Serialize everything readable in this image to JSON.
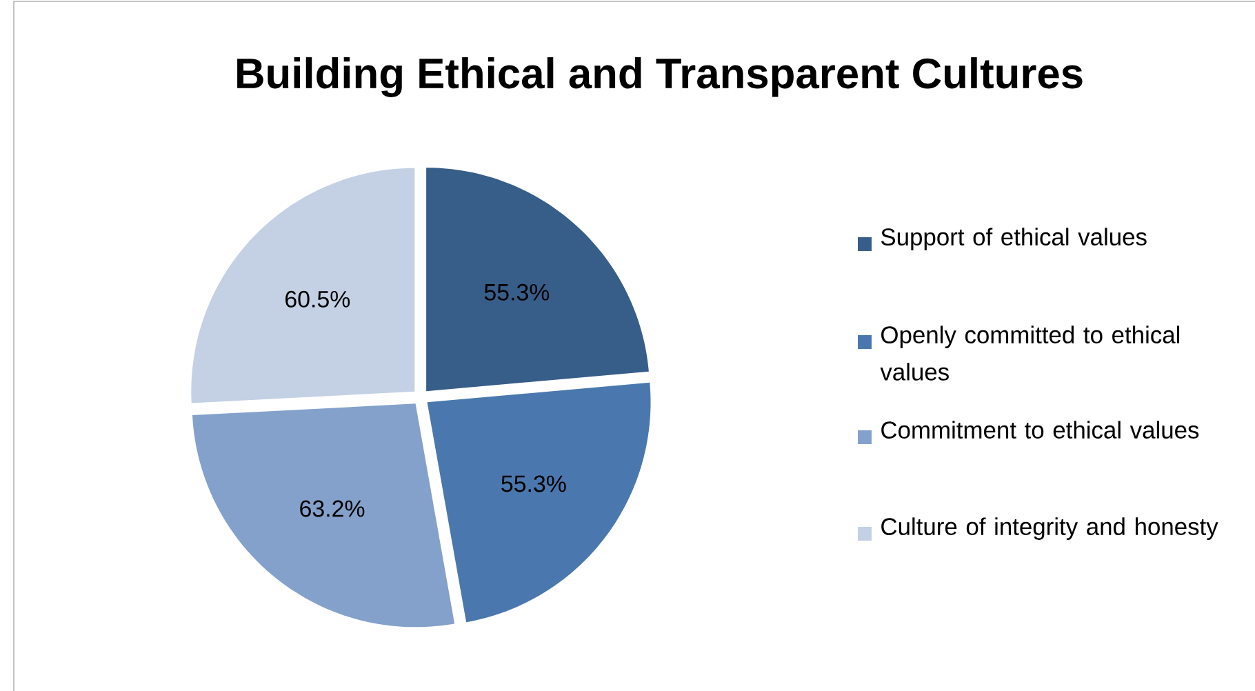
{
  "chart_data": {
    "type": "pie",
    "title": "Building Ethical and Transparent Cultures",
    "categories": [
      "Support of ethical values",
      "Openly committed to ethical values",
      "Commitment to ethical values",
      "Culture of integrity and honesty"
    ],
    "values": [
      55.3,
      55.3,
      63.2,
      60.5
    ],
    "value_labels": [
      "55.3%",
      "55.3%",
      "63.2%",
      "60.5%"
    ],
    "colors": [
      "#375d89",
      "#4a78ae",
      "#84a1cb",
      "#c4d0e3"
    ],
    "legend": "right"
  }
}
